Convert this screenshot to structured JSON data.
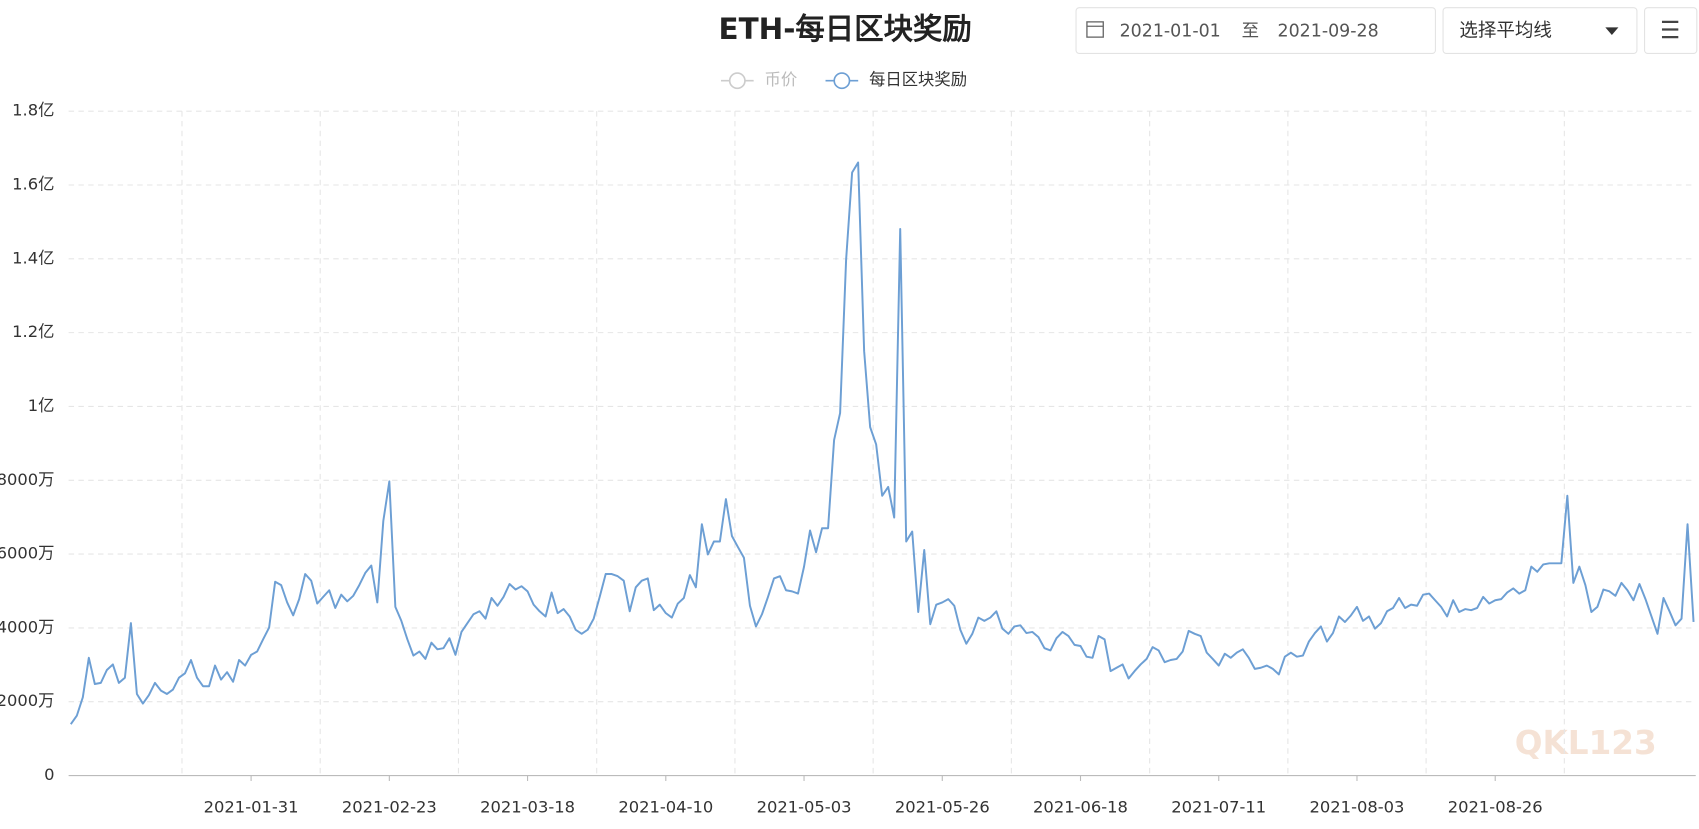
{
  "controls": {
    "date_from": "2021-01-01",
    "date_sep": "至",
    "date_to": "2021-09-28",
    "average_select": "选择平均线"
  },
  "watermark": "QKL123",
  "chart_data": {
    "type": "line",
    "title": "ETH-每日区块奖励",
    "legend_inactive": [
      "币价"
    ],
    "series": [
      {
        "name": "每日区块奖励",
        "color": "#6d9fd4",
        "values": [
          1390,
          1620,
          2120,
          3190,
          2480,
          2510,
          2860,
          3010,
          2510,
          2650,
          4130,
          2210,
          1950,
          2180,
          2510,
          2300,
          2210,
          2330,
          2650,
          2770,
          3130,
          2650,
          2420,
          2420,
          2980,
          2600,
          2800,
          2540,
          3130,
          2980,
          3270,
          3360,
          3690,
          4010,
          5250,
          5160,
          4690,
          4340,
          4780,
          5460,
          5280,
          4660,
          4840,
          5020,
          4540,
          4900,
          4720,
          4870,
          5160,
          5490,
          5690,
          4690,
          6900,
          7970,
          4570,
          4190,
          3690,
          3250,
          3360,
          3160,
          3600,
          3420,
          3450,
          3720,
          3270,
          3890,
          4130,
          4370,
          4450,
          4250,
          4810,
          4600,
          4840,
          5190,
          5040,
          5130,
          4990,
          4630,
          4450,
          4310,
          4960,
          4400,
          4510,
          4310,
          3950,
          3840,
          3950,
          4250,
          4840,
          5460,
          5460,
          5400,
          5280,
          4450,
          5100,
          5280,
          5340,
          4480,
          4630,
          4400,
          4280,
          4660,
          4810,
          5430,
          5100,
          6810,
          5990,
          6340,
          6340,
          7490,
          6490,
          6190,
          5900,
          4600,
          4040,
          4370,
          4840,
          5340,
          5400,
          5020,
          4990,
          4930,
          5660,
          6640,
          6050,
          6700,
          6700,
          9090,
          9820,
          13980,
          16340,
          16610,
          11500,
          9440,
          8970,
          7580,
          7820,
          6990,
          14810,
          6340,
          6610,
          4430,
          6110,
          4100,
          4630,
          4690,
          4780,
          4600,
          3950,
          3570,
          3840,
          4280,
          4190,
          4280,
          4450,
          3980,
          3840,
          4040,
          4070,
          3860,
          3890,
          3750,
          3450,
          3390,
          3720,
          3890,
          3780,
          3540,
          3510,
          3220,
          3190,
          3780,
          3690,
          2830,
          2920,
          3010,
          2630,
          2830,
          3010,
          3160,
          3480,
          3390,
          3070,
          3130,
          3160,
          3360,
          3920,
          3840,
          3780,
          3330,
          3160,
          2980,
          3300,
          3190,
          3330,
          3420,
          3190,
          2890,
          2920,
          2980,
          2890,
          2740,
          3220,
          3330,
          3220,
          3250,
          3630,
          3860,
          4040,
          3630,
          3860,
          4310,
          4160,
          4340,
          4570,
          4190,
          4310,
          3980,
          4130,
          4450,
          4540,
          4810,
          4540,
          4630,
          4600,
          4900,
          4930,
          4750,
          4570,
          4310,
          4750,
          4430,
          4510,
          4480,
          4540,
          4840,
          4660,
          4750,
          4780,
          4960,
          5070,
          4930,
          5020,
          5660,
          5520,
          5720,
          5750,
          5750,
          5750,
          7580,
          5220,
          5660,
          5160,
          4430,
          4570,
          5040,
          4990,
          4870,
          5220,
          5020,
          4750,
          5190,
          4780,
          4310,
          3840,
          4810,
          4450,
          4070,
          4250,
          6810,
          4160
        ]
      }
    ],
    "categories": [
      null,
      null,
      null,
      null,
      null,
      null,
      null,
      null,
      null,
      null,
      null,
      null,
      null,
      null,
      null,
      null,
      null,
      null,
      null,
      null,
      null,
      null,
      null,
      null,
      null,
      null,
      null,
      null,
      null,
      null,
      "2021-01-31",
      null,
      null,
      null,
      null,
      null,
      null,
      null,
      null,
      null,
      null,
      null,
      null,
      null,
      null,
      null,
      null,
      null,
      null,
      null,
      null,
      null,
      null,
      "2021-02-23",
      null,
      null,
      null,
      null,
      null,
      null,
      null,
      null,
      null,
      null,
      null,
      null,
      null,
      null,
      null,
      null,
      null,
      null,
      null,
      null,
      null,
      null,
      "2021-03-18",
      null,
      null,
      null,
      null,
      null,
      null,
      null,
      null,
      null,
      null,
      null,
      null,
      null,
      null,
      null,
      null,
      null,
      null,
      null,
      null,
      null,
      null,
      "2021-04-10",
      null,
      null,
      null,
      null,
      null,
      null,
      null,
      null,
      null,
      null,
      null,
      null,
      null,
      null,
      null,
      null,
      null,
      null,
      null,
      null,
      null,
      null,
      "2021-05-03",
      null,
      null,
      null,
      null,
      null,
      null,
      null,
      null,
      null,
      null,
      null,
      null,
      null,
      null,
      null,
      null,
      null,
      null,
      null,
      null,
      null,
      null,
      "2021-05-26",
      null,
      null,
      null,
      null,
      null,
      null,
      null,
      null,
      null,
      null,
      null,
      null,
      null,
      null,
      null,
      null,
      null,
      null,
      null,
      null,
      null,
      null,
      "2021-06-18",
      null,
      null,
      null,
      null,
      null,
      null,
      null,
      null,
      null,
      null,
      null,
      null,
      null,
      null,
      null,
      null,
      null,
      null,
      null,
      null,
      null,
      null,
      "2021-07-11",
      null,
      null,
      null,
      null,
      null,
      null,
      null,
      null,
      null,
      null,
      null,
      null,
      null,
      null,
      null,
      null,
      null,
      null,
      null,
      null,
      null,
      null,
      "2021-08-03",
      null,
      null,
      null,
      null,
      null,
      null,
      null,
      null,
      null,
      null,
      null,
      null,
      null,
      null,
      null,
      null,
      null,
      null,
      null,
      null,
      null,
      null,
      "2021-08-26",
      null,
      null,
      null,
      null,
      null,
      null,
      null,
      null,
      null,
      null,
      null,
      null,
      null,
      null,
      null,
      null,
      null,
      null,
      null,
      null,
      null,
      null,
      null,
      null,
      null,
      null,
      null,
      null,
      null,
      null,
      null,
      null,
      null
    ],
    "ylim": [
      0,
      18000
    ],
    "yticks": [
      0,
      {
        "value": 2000,
        "label": "2000万"
      },
      {
        "value": 4000,
        "label": "4000万"
      },
      {
        "value": 6000,
        "label": "6000万"
      },
      {
        "value": 8000,
        "label": "8000万"
      },
      {
        "value": 10000,
        "label": "1亿"
      },
      {
        "value": 12000,
        "label": "1.2亿"
      },
      {
        "value": 14000,
        "label": "1.4亿"
      },
      {
        "value": 16000,
        "label": "1.6亿"
      },
      {
        "value": 18000,
        "label": "1.8亿"
      }
    ],
    "grid": true
  }
}
